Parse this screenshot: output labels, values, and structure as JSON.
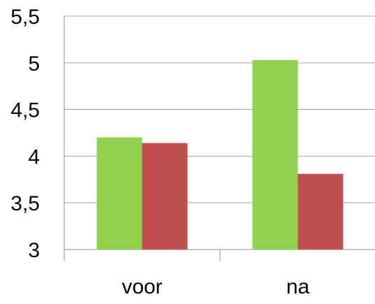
{
  "chart_data": {
    "type": "bar",
    "categories": [
      "voor",
      "na"
    ],
    "series": [
      {
        "values": [
          4.2,
          5.03
        ],
        "color": "#92d050"
      },
      {
        "values": [
          4.14,
          3.81
        ],
        "color": "#c0504d"
      }
    ],
    "ylim": [
      3,
      5.5
    ],
    "yticks": [
      3,
      3.5,
      4,
      4.5,
      5,
      5.5
    ],
    "ytick_labels": [
      "3",
      "3,5",
      "4",
      "4,5",
      "5",
      "5,5"
    ],
    "grid": true,
    "legend": "none",
    "title": "",
    "xlabel": "",
    "ylabel": ""
  }
}
